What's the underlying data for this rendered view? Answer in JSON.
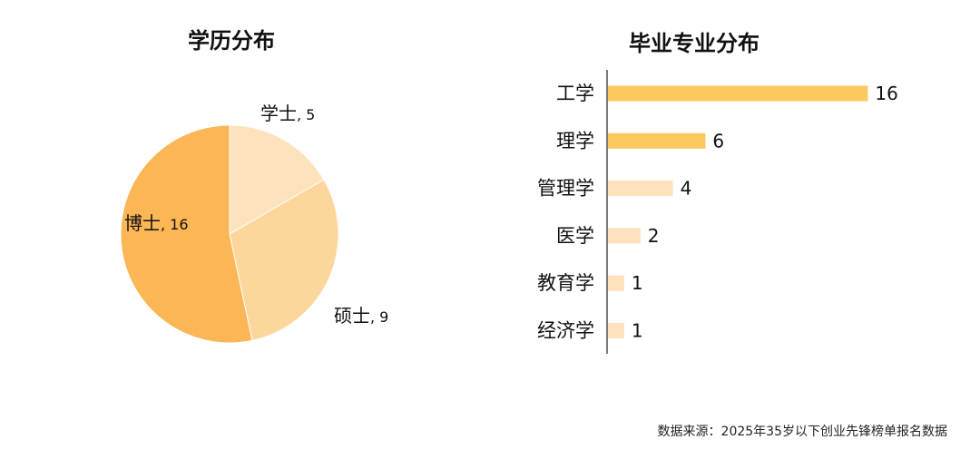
{
  "source_note": "数据来源：2025年35岁以下创业先锋榜单报名数据",
  "chart_data": [
    {
      "type": "pie",
      "title": "学历分布",
      "slices": [
        {
          "label": "学士",
          "value": 5,
          "color": "#fde3bd"
        },
        {
          "label": "硕士",
          "value": 9,
          "color": "#fdd69c"
        },
        {
          "label": "博士",
          "value": 16,
          "color": "#fbb655"
        }
      ]
    },
    {
      "type": "bar",
      "orientation": "horizontal",
      "title": "毕业专业分布",
      "categories": [
        "工学",
        "理学",
        "管理学",
        "医学",
        "教育学",
        "经济学"
      ],
      "values": [
        16,
        6,
        4,
        2,
        1,
        1
      ],
      "colors": [
        "#fbc85c",
        "#fbc85c",
        "#fde2bd",
        "#fde2bd",
        "#fde2bd",
        "#fde2bd"
      ],
      "xlim": [
        0,
        16
      ]
    }
  ]
}
